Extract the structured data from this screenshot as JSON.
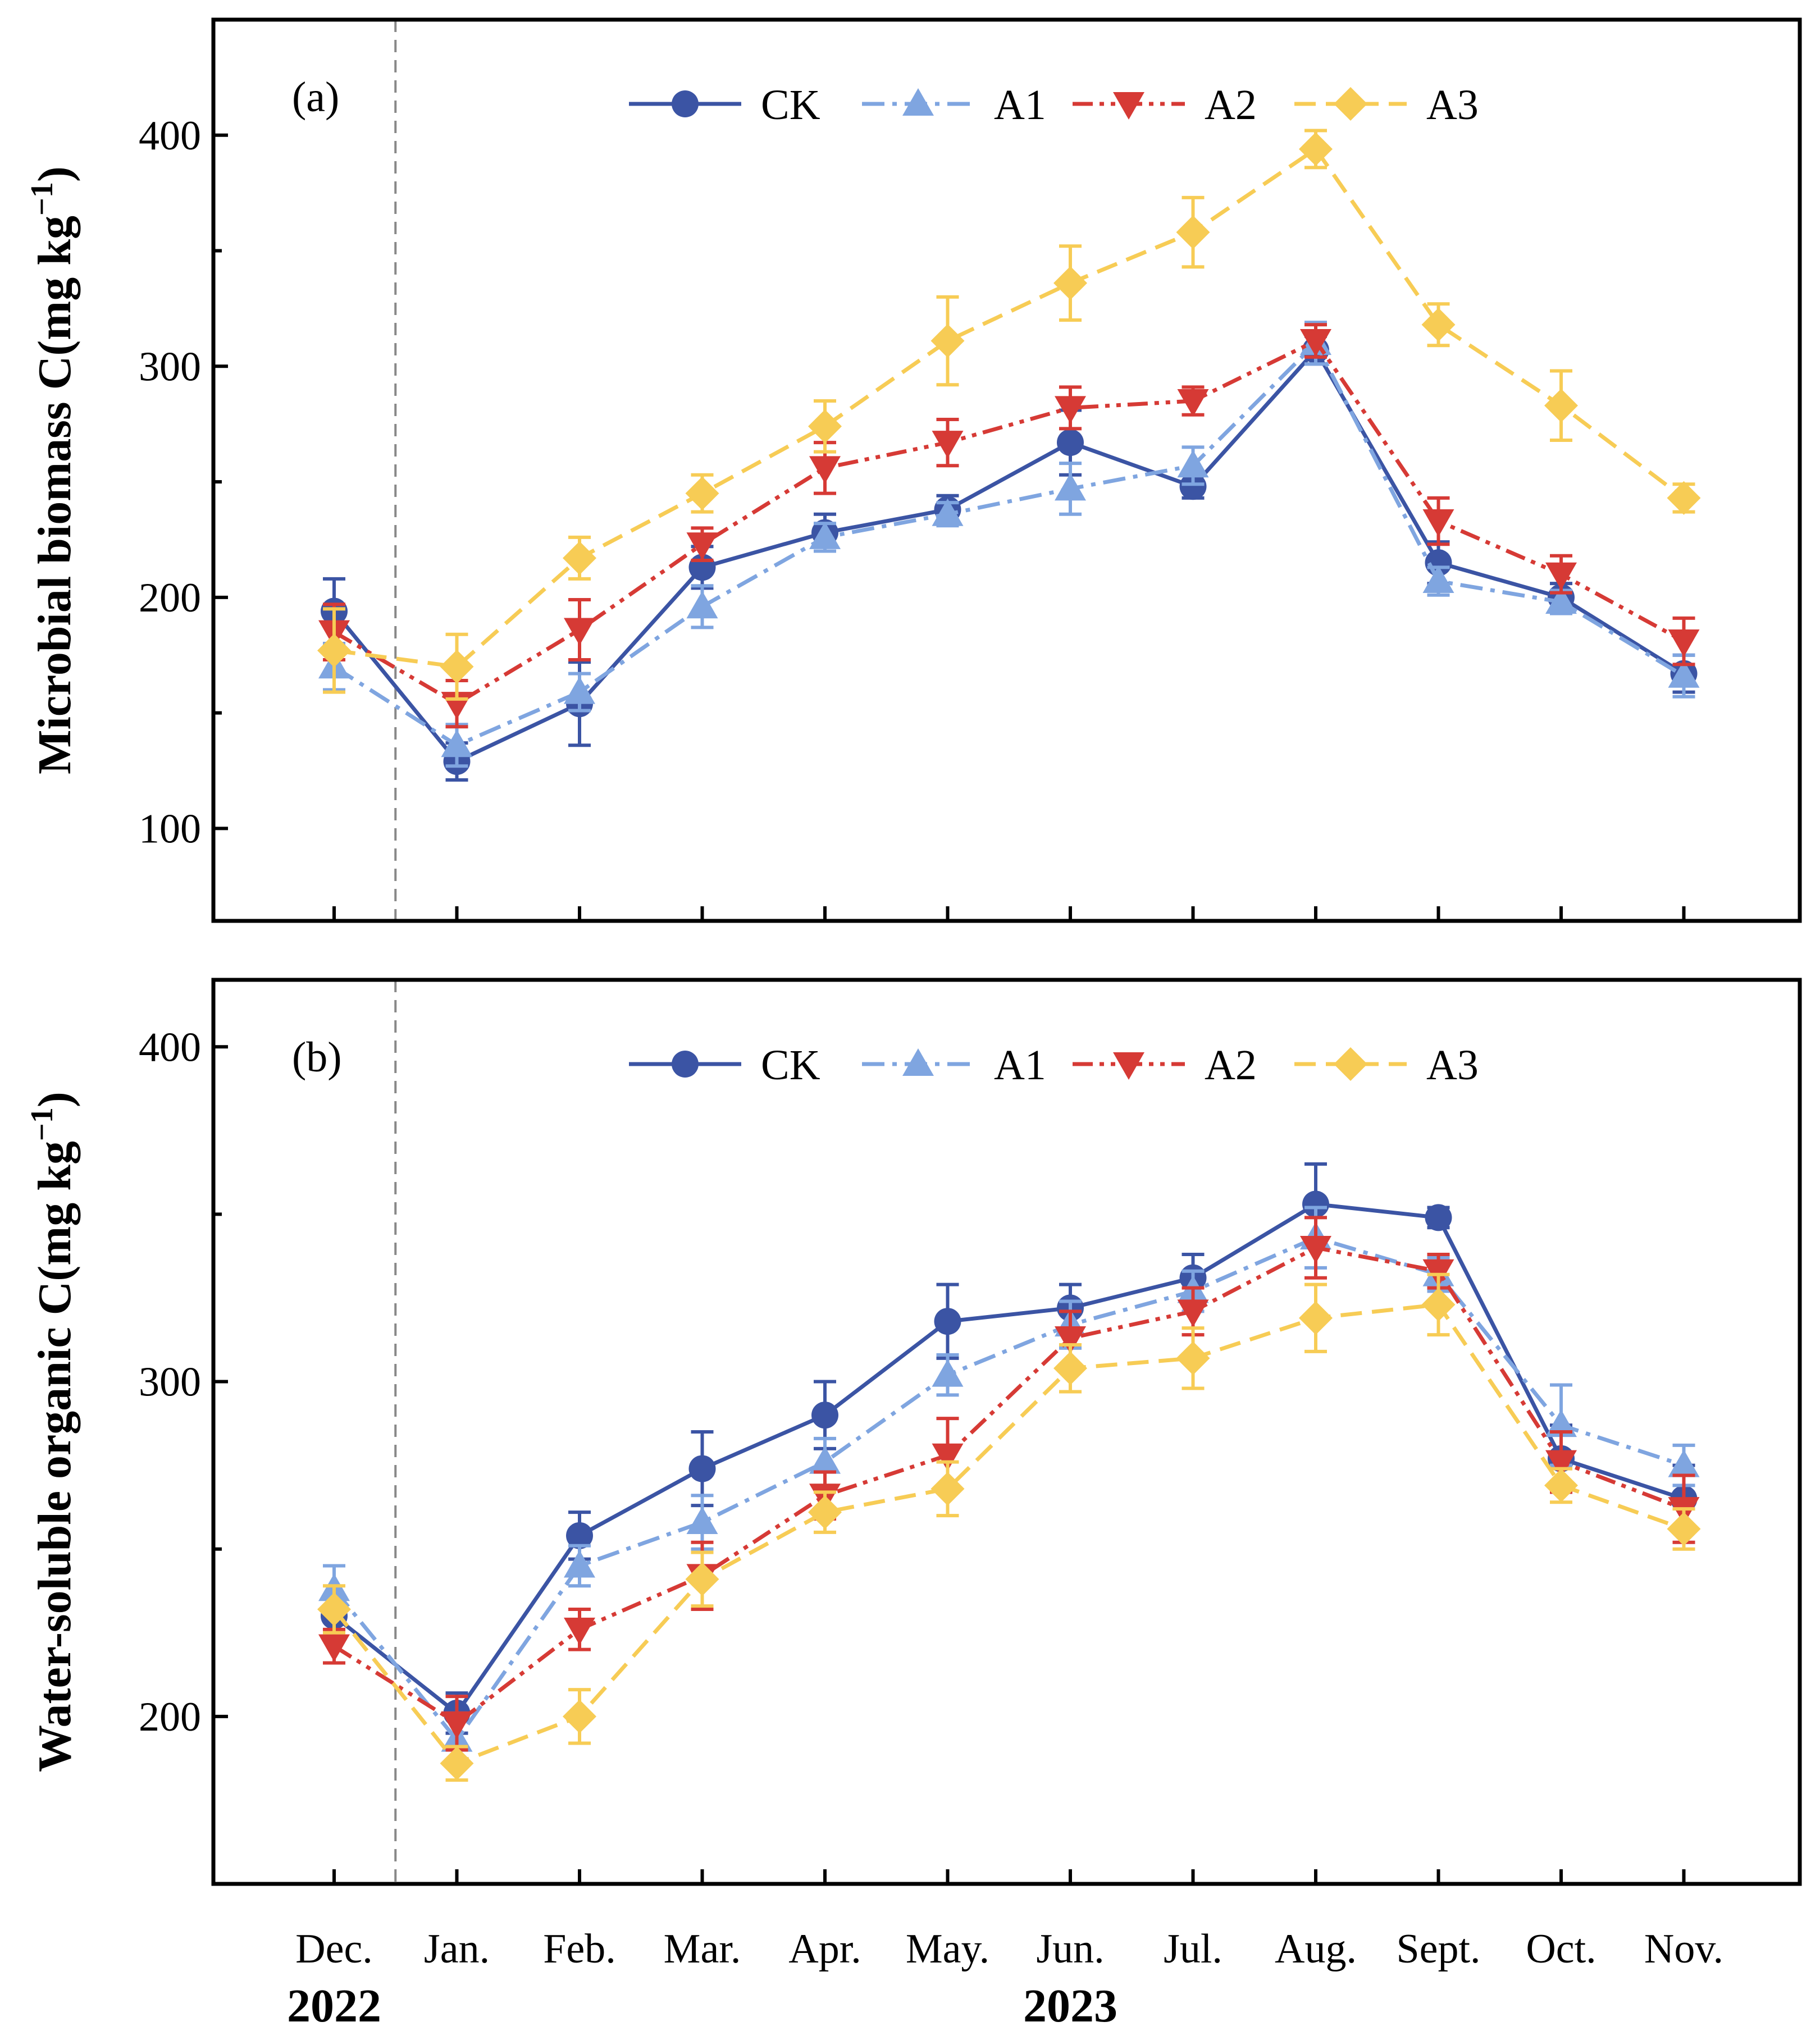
{
  "chart_data": {
    "type": "line",
    "categories": [
      "Dec.",
      "Jan.",
      "Feb.",
      "Mar.",
      "Apr.",
      "May.",
      "Jun.",
      "Jul.",
      "Aug.",
      "Sept.",
      "Oct.",
      "Nov."
    ],
    "year_labels": [
      {
        "label": "2022",
        "category_index": 0
      },
      {
        "label": "2023",
        "category_index": 6
      }
    ],
    "divider_after_category_index": 0,
    "colors": {
      "CK": "#3b54a4",
      "A1": "#7fa5e0",
      "A2": "#d63a35",
      "A3": "#f7cc55",
      "divider": "#888888"
    },
    "legend_order": [
      "CK",
      "A1",
      "A2",
      "A3"
    ],
    "panels": [
      {
        "tag": "(a)",
        "ylabel": "Microbial biomass C(mg kg",
        "ylabel_sup": "−1",
        "ylabel_close": ")",
        "ylim": [
          60,
          450
        ],
        "yticks": [
          100,
          200,
          300,
          400
        ],
        "series": [
          {
            "name": "CK",
            "marker": "circle",
            "dash": "solid",
            "values": [
              194,
              129,
              154,
              213,
              228,
              238,
              267,
              248,
              307,
              215,
              200,
              167
            ],
            "errors": [
              14,
              8,
              18,
              9,
              8,
              6,
              14,
              5,
              6,
              9,
              6,
              8
            ]
          },
          {
            "name": "A1",
            "marker": "triangle-up",
            "dash": "dashdot",
            "values": [
              170,
              136,
              159,
              196,
              226,
              236,
              247,
              257,
              310,
              207,
              198,
              166
            ],
            "errors": [
              10,
              9,
              8,
              9,
              6,
              5,
              11,
              8,
              9,
              6,
              5,
              9
            ]
          },
          {
            "name": "A2",
            "marker": "triangle-down",
            "dash": "dashdotdot",
            "values": [
              185,
              154,
              186,
              223,
              256,
              267,
              282,
              285,
              311,
              233,
              210,
              181
            ],
            "errors": [
              12,
              10,
              13,
              7,
              11,
              10,
              9,
              6,
              7,
              10,
              8,
              10
            ]
          },
          {
            "name": "A3",
            "marker": "diamond",
            "dash": "dash",
            "values": [
              177,
              170,
              217,
              245,
              274,
              311,
              336,
              358,
              394,
              318,
              283,
              243
            ],
            "errors": [
              18,
              14,
              9,
              8,
              11,
              19,
              16,
              15,
              8,
              9,
              15,
              6
            ]
          }
        ]
      },
      {
        "tag": "(b)",
        "ylabel": "Water-soluble organic C(mg kg",
        "ylabel_sup": "−1",
        "ylabel_close": ")",
        "ylim": [
          150,
          420
        ],
        "yticks": [
          200,
          300,
          400
        ],
        "series": [
          {
            "name": "CK",
            "marker": "circle",
            "dash": "solid",
            "values": [
              230,
              201,
              254,
              274,
              290,
              318,
              322,
              331,
              353,
              349,
              277,
              265
            ],
            "errors": [
              6,
              6,
              7,
              11,
              10,
              11,
              7,
              7,
              12,
              3,
              10,
              10
            ]
          },
          {
            "name": "A1",
            "marker": "triangle-up",
            "dash": "dashdot",
            "values": [
              238,
              193,
              245,
              258,
              276,
              302,
              317,
              327,
              343,
              332,
              287,
              275
            ],
            "errors": [
              7,
              8,
              6,
              8,
              7,
              6,
              7,
              6,
              9,
              5,
              12,
              6
            ]
          },
          {
            "name": "A2",
            "marker": "triangle-down",
            "dash": "dashdotdot",
            "values": [
              221,
              198,
              226,
              242,
              266,
              278,
              313,
              321,
              340,
              333,
              276,
              262
            ],
            "errors": [
              5,
              8,
              6,
              10,
              7,
              11,
              8,
              7,
              9,
              5,
              9,
              10
            ]
          },
          {
            "name": "A3",
            "marker": "diamond",
            "dash": "dash",
            "values": [
              232,
              186,
              200,
              241,
              261,
              268,
              304,
              307,
              319,
              323,
              269,
              256
            ],
            "errors": [
              7,
              5,
              8,
              8,
              6,
              8,
              7,
              9,
              10,
              9,
              5,
              6
            ]
          }
        ]
      }
    ]
  }
}
